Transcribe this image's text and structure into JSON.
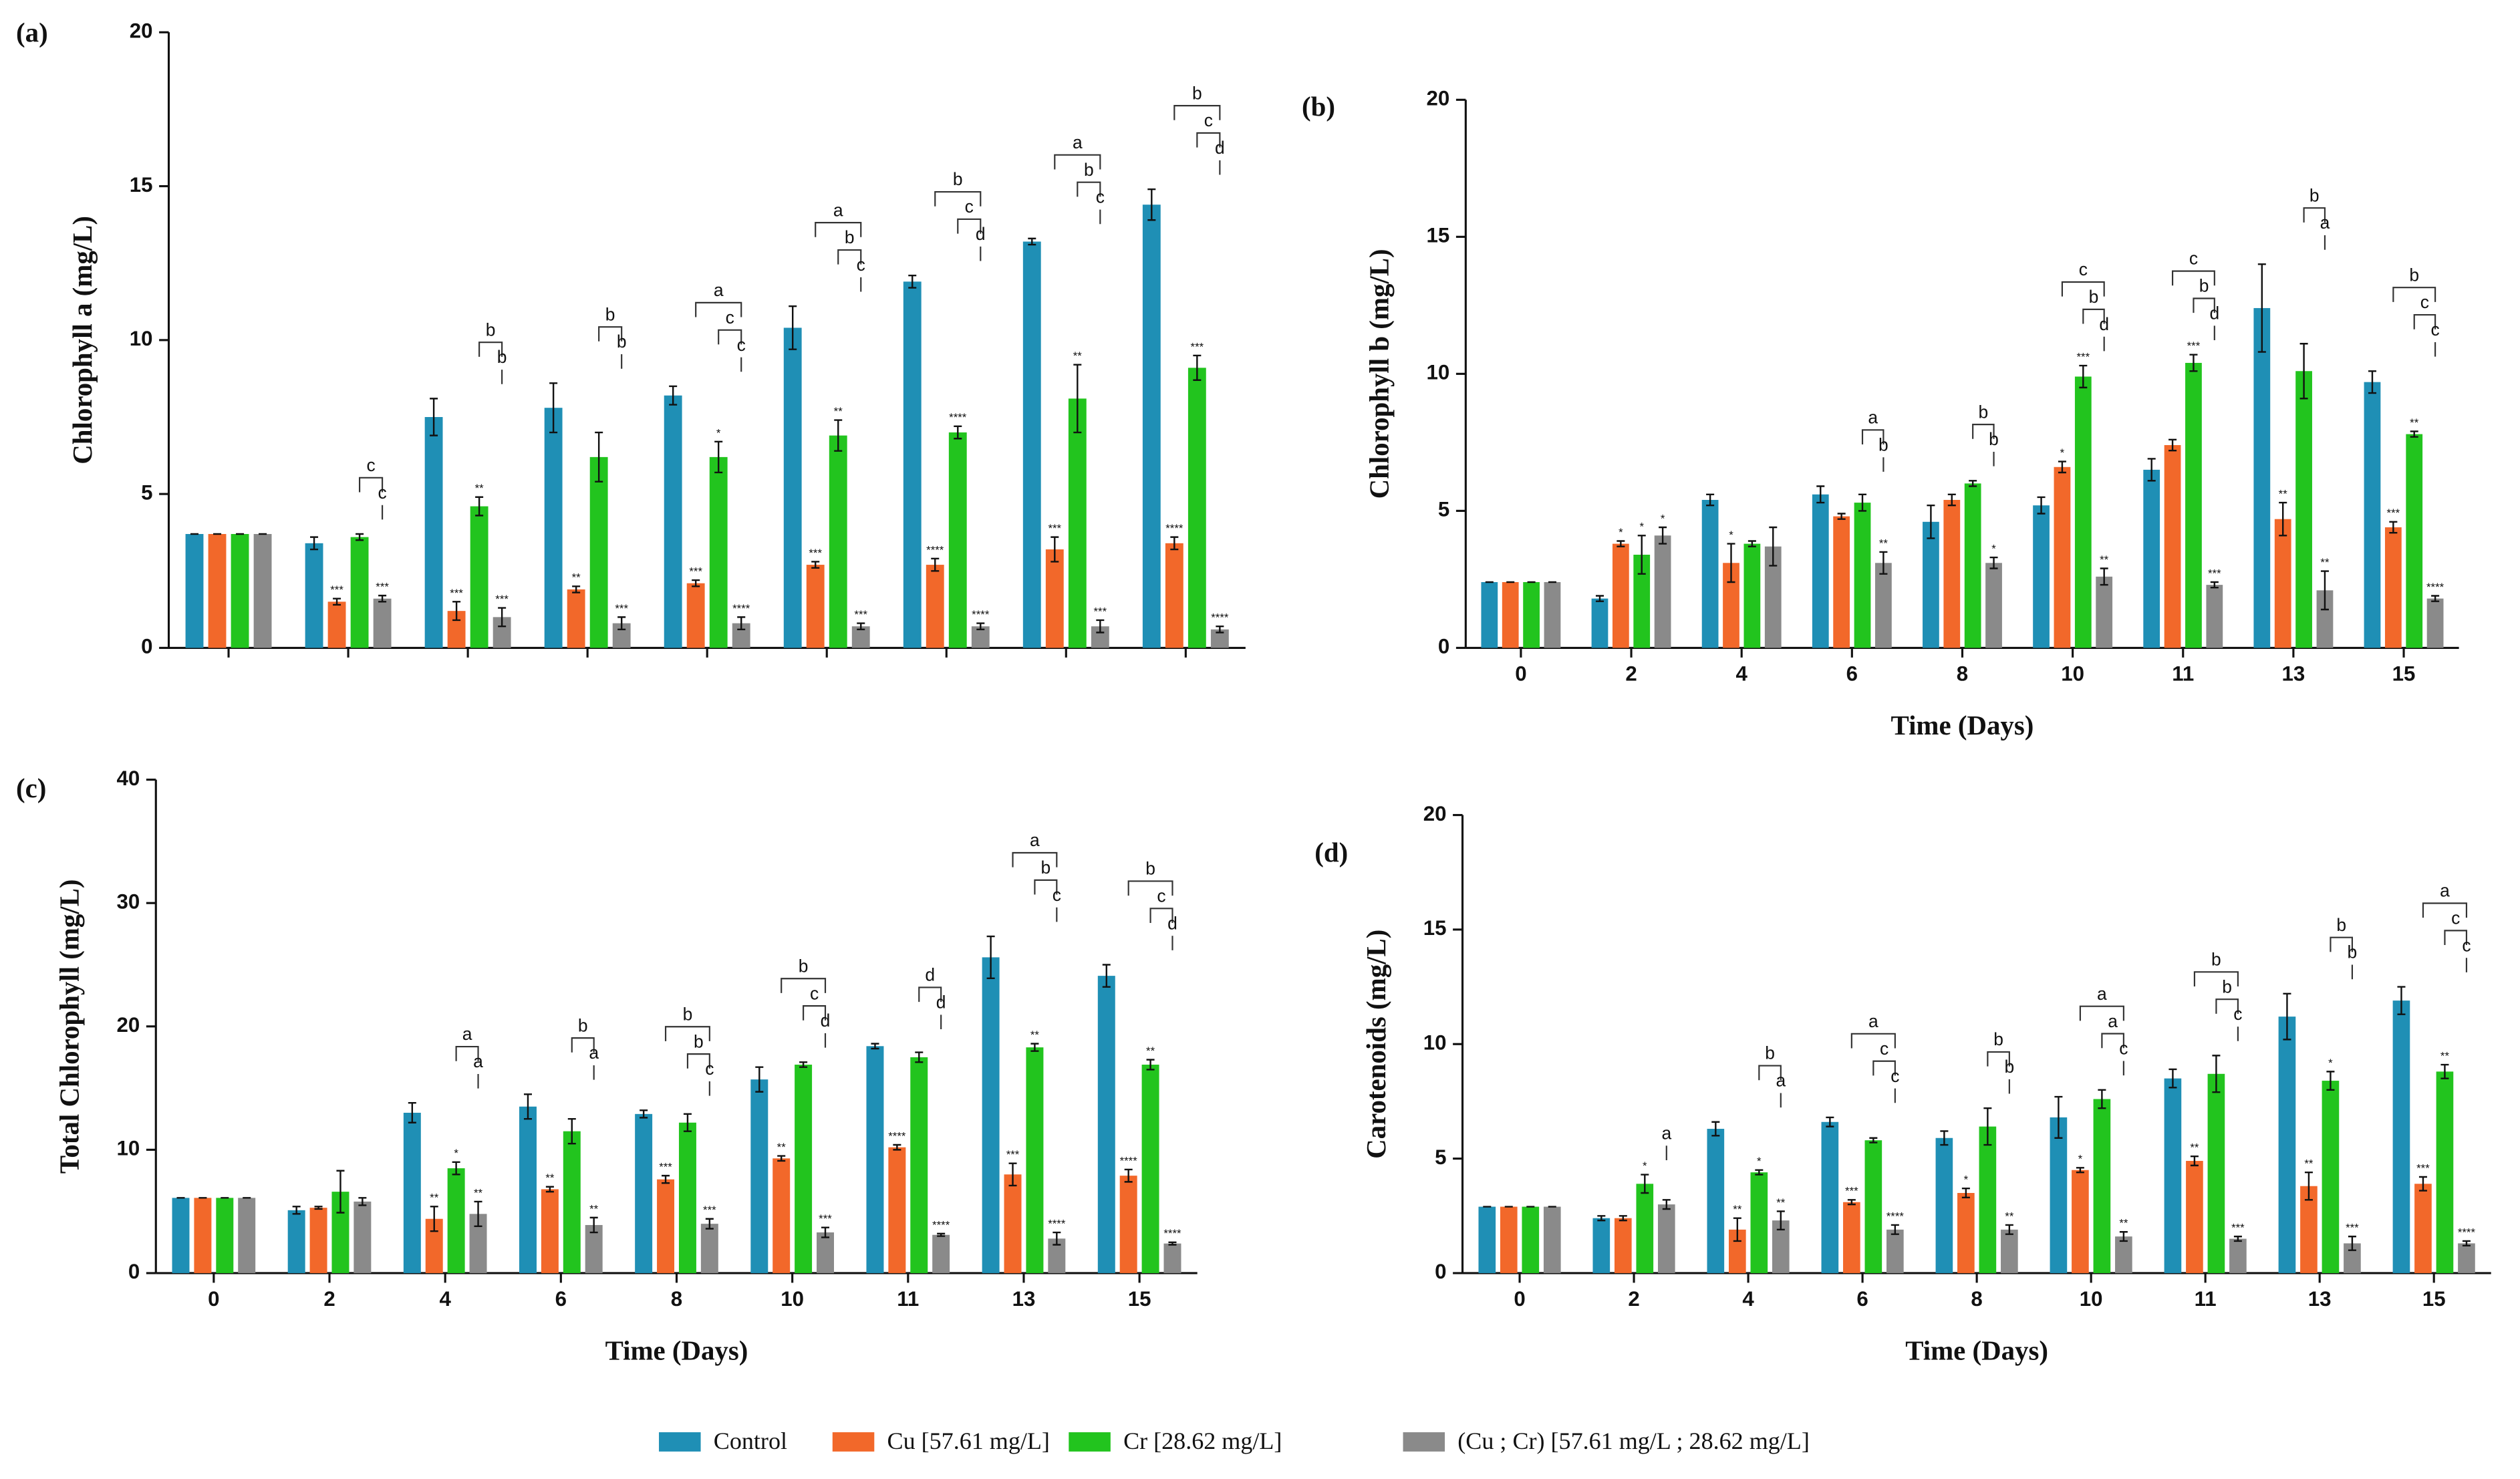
{
  "chart_data": [
    {
      "type": "bar",
      "panel": "(a)",
      "y_label": "Chlorophyll a (mg/L)",
      "categories": [
        null,
        null,
        null,
        null,
        null,
        null,
        null,
        null,
        null
      ],
      "ylim": [
        0,
        20
      ],
      "yticks": [
        0,
        5,
        10,
        15,
        20
      ],
      "series": [
        {
          "color": "#1f8fb5",
          "values": [
            3.7,
            3.4,
            7.5,
            7.8,
            8.2,
            10.4,
            11.9,
            13.2,
            14.4
          ],
          "errors": [
            0,
            0.2,
            0.6,
            0.8,
            0.3,
            0.7,
            0.2,
            0.1,
            0.5
          ],
          "stars": [
            null,
            null,
            null,
            null,
            null,
            null,
            null,
            null,
            null
          ]
        },
        {
          "color": "#f2682a",
          "values": [
            3.7,
            1.5,
            1.2,
            1.9,
            2.1,
            2.7,
            2.7,
            3.2,
            3.4
          ],
          "errors": [
            0,
            0.1,
            0.3,
            0.1,
            0.1,
            0.1,
            0.2,
            0.4,
            0.2
          ],
          "stars": [
            null,
            "***",
            "***",
            "**",
            "***",
            "***",
            "****",
            "***",
            "****"
          ]
        },
        {
          "color": "#22c41e",
          "values": [
            3.7,
            3.6,
            4.6,
            6.2,
            6.2,
            6.9,
            7.0,
            8.1,
            9.1
          ],
          "errors": [
            0,
            0.1,
            0.3,
            0.8,
            0.5,
            0.5,
            0.2,
            1.1,
            0.4
          ],
          "stars": [
            null,
            null,
            "**",
            null,
            "*",
            "**",
            "****",
            "**",
            "***"
          ]
        },
        {
          "color": "#8a8a8a",
          "values": [
            3.7,
            1.6,
            1.0,
            0.8,
            0.8,
            0.7,
            0.7,
            0.7,
            0.6
          ],
          "errors": [
            0,
            0.1,
            0.3,
            0.2,
            0.2,
            0.1,
            0.1,
            0.2,
            0.1
          ],
          "stars": [
            null,
            "***",
            "***",
            "***",
            "****",
            "***",
            "****",
            "***",
            "****"
          ]
        }
      ],
      "brackets": [
        [],
        [
          "c",
          "c"
        ],
        [
          "b",
          "b"
        ],
        [
          "b",
          "b"
        ],
        [
          "a",
          "c",
          "c"
        ],
        [
          "a",
          "b",
          "c"
        ],
        [
          "b",
          "c",
          "d"
        ],
        [
          "a",
          "b",
          "c"
        ],
        [
          "b",
          "c",
          "d"
        ]
      ]
    },
    {
      "type": "bar",
      "panel": "(b)",
      "y_label": "Chlorophyll b (mg/L)",
      "x_label": "Time (Days)",
      "categories": [
        "0",
        "2",
        "4",
        "6",
        "8",
        "10",
        "11",
        "13",
        "15"
      ],
      "ylim": [
        0,
        20
      ],
      "yticks": [
        0,
        5,
        10,
        15,
        20
      ],
      "series": [
        {
          "color": "#1f8fb5",
          "values": [
            2.4,
            1.8,
            5.4,
            5.6,
            4.6,
            5.2,
            6.5,
            12.4,
            9.7
          ],
          "errors": [
            0,
            0.1,
            0.2,
            0.3,
            0.6,
            0.3,
            0.4,
            1.6,
            0.4
          ],
          "stars": [
            null,
            null,
            null,
            null,
            null,
            null,
            null,
            null,
            null
          ]
        },
        {
          "color": "#f2682a",
          "values": [
            2.4,
            3.8,
            3.1,
            4.8,
            5.4,
            6.6,
            7.4,
            4.7,
            4.4
          ],
          "errors": [
            0,
            0.1,
            0.7,
            0.1,
            0.2,
            0.2,
            0.2,
            0.6,
            0.2
          ],
          "stars": [
            null,
            "*",
            "*",
            null,
            null,
            "*",
            null,
            "**",
            "***"
          ]
        },
        {
          "color": "#22c41e",
          "values": [
            2.4,
            3.4,
            3.8,
            5.3,
            6.0,
            9.9,
            10.4,
            10.1,
            7.8
          ],
          "errors": [
            0,
            0.7,
            0.1,
            0.3,
            0.1,
            0.4,
            0.3,
            1.0,
            0.1
          ],
          "stars": [
            null,
            "*",
            null,
            null,
            null,
            "***",
            "***",
            null,
            "**"
          ]
        },
        {
          "color": "#8a8a8a",
          "values": [
            2.4,
            4.1,
            3.7,
            3.1,
            3.1,
            2.6,
            2.3,
            2.1,
            1.8
          ],
          "errors": [
            0,
            0.3,
            0.7,
            0.4,
            0.2,
            0.3,
            0.1,
            0.7,
            0.1
          ],
          "stars": [
            null,
            "*",
            null,
            "**",
            "*",
            "**",
            "***",
            "**",
            "****"
          ]
        }
      ],
      "brackets": [
        [],
        [],
        [],
        [
          "a",
          "b"
        ],
        [
          "b",
          "b"
        ],
        [
          "c",
          "b",
          "d"
        ],
        [
          "c",
          "b",
          "d"
        ],
        [
          "b",
          "a"
        ],
        [
          "b",
          "c",
          "c"
        ]
      ]
    },
    {
      "type": "bar",
      "panel": "(c)",
      "y_label": "Total Chlorophyll (mg/L)",
      "x_label": "Time (Days)",
      "categories": [
        "0",
        "2",
        "4",
        "6",
        "8",
        "10",
        "11",
        "13",
        "15"
      ],
      "ylim": [
        0,
        40
      ],
      "yticks": [
        0,
        10,
        20,
        30,
        40
      ],
      "series": [
        {
          "color": "#1f8fb5",
          "values": [
            6.1,
            5.1,
            13.0,
            13.5,
            12.9,
            15.7,
            18.4,
            25.6,
            24.1
          ],
          "errors": [
            0,
            0.3,
            0.8,
            1.0,
            0.3,
            1.0,
            0.2,
            1.7,
            0.9
          ],
          "stars": [
            null,
            null,
            null,
            null,
            null,
            null,
            null,
            null,
            null
          ]
        },
        {
          "color": "#f2682a",
          "values": [
            6.1,
            5.3,
            4.4,
            6.8,
            7.6,
            9.3,
            10.2,
            8.0,
            7.9
          ],
          "errors": [
            0,
            0.1,
            1.0,
            0.2,
            0.3,
            0.2,
            0.2,
            0.9,
            0.5
          ],
          "stars": [
            null,
            null,
            "**",
            "**",
            "***",
            "**",
            "****",
            "***",
            "****"
          ]
        },
        {
          "color": "#22c41e",
          "values": [
            6.1,
            6.6,
            8.5,
            11.5,
            12.2,
            16.9,
            17.5,
            18.3,
            16.9
          ],
          "errors": [
            0,
            1.7,
            0.5,
            1.0,
            0.7,
            0.2,
            0.4,
            0.3,
            0.4
          ],
          "stars": [
            null,
            null,
            "*",
            null,
            null,
            null,
            null,
            "**",
            "**"
          ]
        },
        {
          "color": "#8a8a8a",
          "values": [
            6.1,
            5.8,
            4.8,
            3.9,
            4.0,
            3.3,
            3.1,
            2.8,
            2.4
          ],
          "errors": [
            0,
            0.3,
            1.0,
            0.6,
            0.4,
            0.4,
            0.1,
            0.5,
            0.1
          ],
          "stars": [
            null,
            null,
            "**",
            "**",
            "***",
            "***",
            "****",
            "****",
            "****"
          ]
        }
      ],
      "brackets": [
        [],
        [],
        [
          "a",
          "a"
        ],
        [
          "b",
          "a"
        ],
        [
          "b",
          "b",
          "c"
        ],
        [
          "b",
          "c",
          "d"
        ],
        [
          "d",
          "d"
        ],
        [
          "a",
          "b",
          "c"
        ],
        [
          "b",
          "c",
          "d"
        ]
      ]
    },
    {
      "type": "bar",
      "panel": "(d)",
      "y_label": "Carotenoids (mg/L)",
      "x_label": "Time (Days)",
      "categories": [
        "0",
        "2",
        "4",
        "6",
        "8",
        "10",
        "11",
        "13",
        "15"
      ],
      "ylim": [
        0,
        20
      ],
      "yticks": [
        0,
        5,
        10,
        15,
        20
      ],
      "series": [
        {
          "color": "#1f8fb5",
          "values": [
            2.9,
            2.4,
            6.3,
            6.6,
            5.9,
            6.8,
            8.5,
            11.2,
            11.9
          ],
          "errors": [
            0,
            0.1,
            0.3,
            0.2,
            0.3,
            0.9,
            0.4,
            1.0,
            0.6
          ],
          "stars": [
            null,
            null,
            null,
            null,
            null,
            null,
            null,
            null,
            null
          ]
        },
        {
          "color": "#f2682a",
          "values": [
            2.9,
            2.4,
            1.9,
            3.1,
            3.5,
            4.5,
            4.9,
            3.8,
            3.9
          ],
          "errors": [
            0,
            0.1,
            0.5,
            0.1,
            0.2,
            0.1,
            0.2,
            0.6,
            0.3
          ],
          "stars": [
            null,
            null,
            "**",
            "***",
            "*",
            "*",
            "**",
            "**",
            "***"
          ]
        },
        {
          "color": "#22c41e",
          "values": [
            2.9,
            3.9,
            4.4,
            5.8,
            6.4,
            7.6,
            8.7,
            8.4,
            8.8
          ],
          "errors": [
            0,
            0.4,
            0.1,
            0.1,
            0.8,
            0.4,
            0.8,
            0.4,
            0.3
          ],
          "stars": [
            null,
            "*",
            "*",
            null,
            null,
            null,
            null,
            "*",
            "**"
          ]
        },
        {
          "color": "#8a8a8a",
          "values": [
            2.9,
            3.0,
            2.3,
            1.9,
            1.9,
            1.6,
            1.5,
            1.3,
            1.3
          ],
          "errors": [
            0,
            0.2,
            0.4,
            0.2,
            0.2,
            0.2,
            0.1,
            0.3,
            0.1
          ],
          "stars": [
            null,
            null,
            "**",
            "****",
            "**",
            "**",
            "***",
            "***",
            "****"
          ]
        }
      ],
      "brackets": [
        [],
        [
          "a"
        ],
        [
          "b",
          "a"
        ],
        [
          "a",
          "c",
          "c"
        ],
        [
          "b",
          "b"
        ],
        [
          "a",
          "a",
          "c"
        ],
        [
          "b",
          "b",
          "c"
        ],
        [
          "b",
          "b"
        ],
        [
          "a",
          "c",
          "c"
        ]
      ]
    }
  ],
  "legend": [
    {
      "name": "Control",
      "color": "#1f8fb5"
    },
    {
      "name": "Cu [57.61 mg/L]",
      "color": "#f2682a"
    },
    {
      "name": "Cr [28.62 mg/L]",
      "color": "#22c41e"
    },
    {
      "name": "(Cu ; Cr) [57.61 mg/L ; 28.62 mg/L]",
      "color": "#8a8a8a"
    }
  ]
}
